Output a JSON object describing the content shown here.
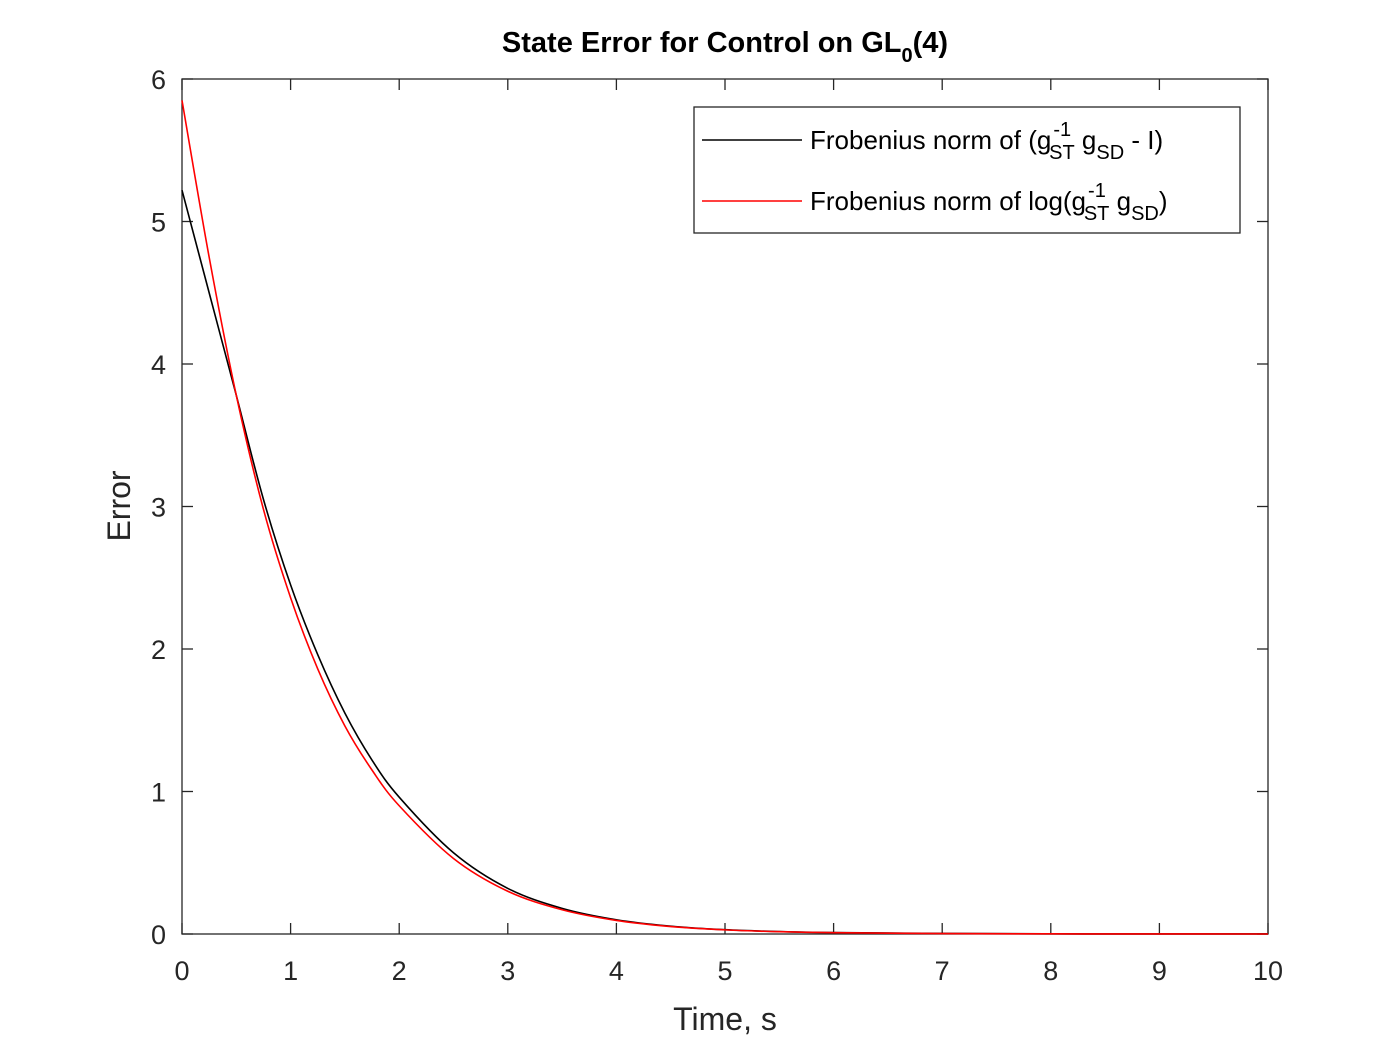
{
  "chart_data": {
    "type": "line",
    "title": {
      "main": "State Error for Control on GL",
      "subscript": "0",
      "suffix": "(4)"
    },
    "xlabel": "Time, s",
    "ylabel": "Error",
    "xlim": [
      0,
      10
    ],
    "ylim": [
      0,
      6
    ],
    "xticks": [
      0,
      1,
      2,
      3,
      4,
      5,
      6,
      7,
      8,
      9,
      10
    ],
    "yticks": [
      0,
      1,
      2,
      3,
      4,
      5,
      6
    ],
    "grid": false,
    "legend_position": "top-right",
    "legend": [
      {
        "prefix": "Frobenius norm of (g",
        "sup": "-1",
        "sub1": "ST",
        "mid": " g",
        "sub2": "SD",
        "suffix": " - I)",
        "color": "#000000"
      },
      {
        "prefix": "Frobenius norm of log(g",
        "sup": "-1",
        "sub1": "ST",
        "mid": " g",
        "sub2": "SD",
        "suffix": ")",
        "color": "#ff0000"
      }
    ],
    "series": [
      {
        "color": "#000000",
        "x": [
          0,
          0.25,
          0.5,
          0.75,
          1,
          1.25,
          1.5,
          1.75,
          2,
          2.5,
          3,
          3.5,
          4,
          4.5,
          5,
          5.5,
          6,
          7,
          8,
          9,
          10
        ],
        "y": [
          5.22,
          4.5,
          3.78,
          3.05,
          2.45,
          1.96,
          1.55,
          1.22,
          0.96,
          0.57,
          0.32,
          0.18,
          0.1,
          0.055,
          0.03,
          0.017,
          0.01,
          0.004,
          0.001,
          0.0005,
          0.0002
        ]
      },
      {
        "color": "#ff0000",
        "x": [
          0,
          0.25,
          0.5,
          0.75,
          1,
          1.25,
          1.5,
          1.75,
          2,
          2.5,
          3,
          3.5,
          4,
          4.5,
          5,
          5.5,
          6,
          7,
          8,
          9,
          10
        ],
        "y": [
          5.85,
          4.75,
          3.78,
          2.98,
          2.36,
          1.86,
          1.46,
          1.15,
          0.9,
          0.53,
          0.3,
          0.17,
          0.095,
          0.052,
          0.029,
          0.016,
          0.009,
          0.003,
          0.001,
          0.0004,
          0.0001
        ]
      }
    ]
  }
}
